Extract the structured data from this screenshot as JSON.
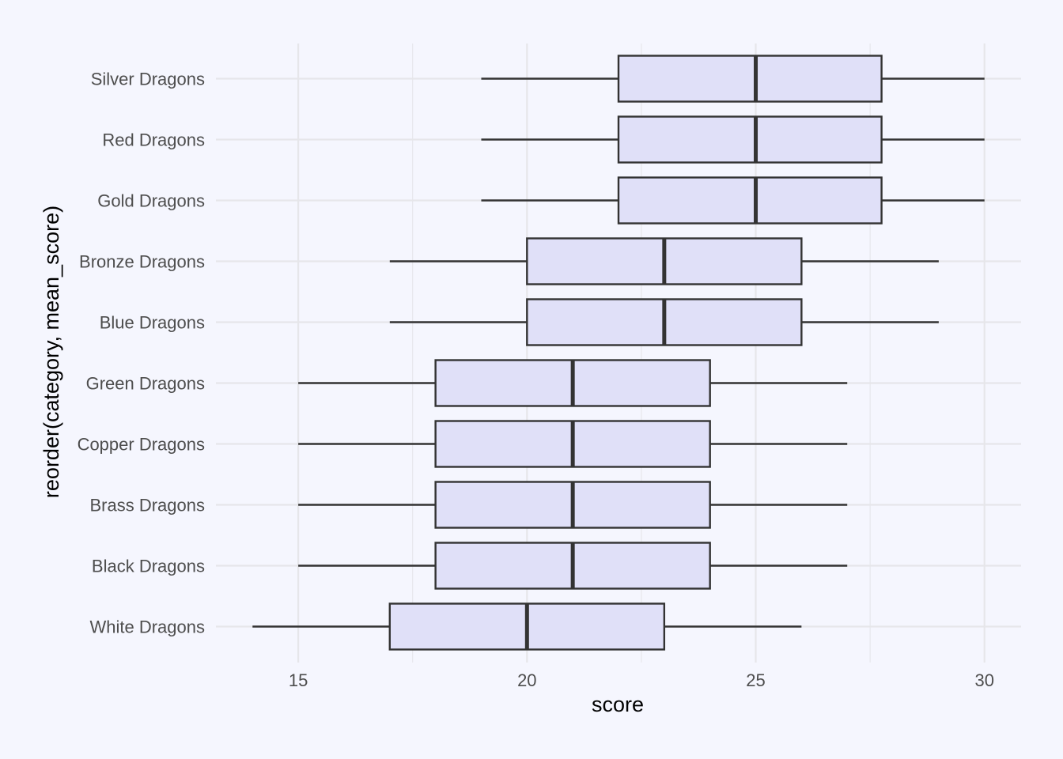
{
  "chart_data": {
    "type": "boxplot",
    "orientation": "horizontal",
    "xlabel": "score",
    "ylabel": "reorder(category, mean_score)",
    "xlim": [
      13.2,
      30.8
    ],
    "x_ticks": [
      15,
      20,
      25,
      30
    ],
    "x_tick_labels": [
      "15",
      "20",
      "25",
      "30"
    ],
    "grid": true,
    "box_fill": "#e0e0f8",
    "line_color": "#333333",
    "background": "#f5f6fe",
    "categories": [
      "Silver Dragons",
      "Red Dragons",
      "Gold Dragons",
      "Bronze Dragons",
      "Blue Dragons",
      "Green Dragons",
      "Copper Dragons",
      "Brass Dragons",
      "Black Dragons",
      "White Dragons"
    ],
    "boxes": [
      {
        "category": "Silver Dragons",
        "min": 19,
        "q1": 22,
        "median": 25,
        "q3": 27.75,
        "max": 30
      },
      {
        "category": "Red Dragons",
        "min": 19,
        "q1": 22,
        "median": 25,
        "q3": 27.75,
        "max": 30
      },
      {
        "category": "Gold Dragons",
        "min": 19,
        "q1": 22,
        "median": 25,
        "q3": 27.75,
        "max": 30
      },
      {
        "category": "Bronze Dragons",
        "min": 17,
        "q1": 20,
        "median": 23,
        "q3": 26,
        "max": 29
      },
      {
        "category": "Blue Dragons",
        "min": 17,
        "q1": 20,
        "median": 23,
        "q3": 26,
        "max": 29
      },
      {
        "category": "Green Dragons",
        "min": 15,
        "q1": 18,
        "median": 21,
        "q3": 24,
        "max": 27
      },
      {
        "category": "Copper Dragons",
        "min": 15,
        "q1": 18,
        "median": 21,
        "q3": 24,
        "max": 27
      },
      {
        "category": "Brass Dragons",
        "min": 15,
        "q1": 18,
        "median": 21,
        "q3": 24,
        "max": 27
      },
      {
        "category": "Black Dragons",
        "min": 15,
        "q1": 18,
        "median": 21,
        "q3": 24,
        "max": 27
      },
      {
        "category": "White Dragons",
        "min": 14,
        "q1": 17,
        "median": 20,
        "q3": 23,
        "max": 26
      }
    ]
  }
}
